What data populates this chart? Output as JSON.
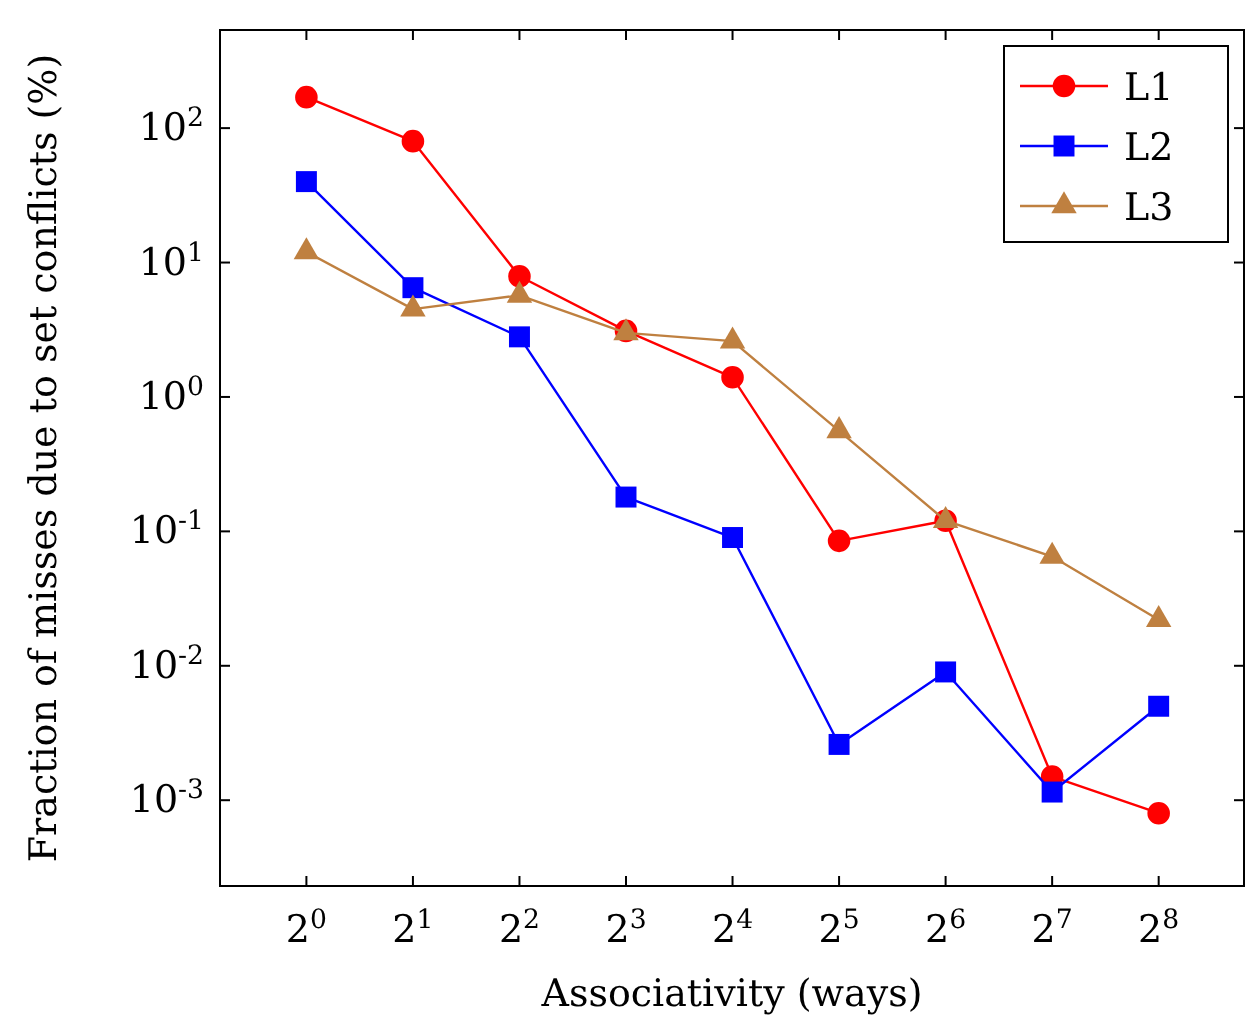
{
  "chart_data": {
    "type": "line",
    "xlabel": "Associativity (ways)",
    "ylabel": "Fraction of misses due to set conflicts (%)",
    "log": "xy",
    "x": [
      1,
      2,
      4,
      8,
      16,
      32,
      64,
      128,
      256
    ],
    "xlim": [
      0.57,
      446
    ],
    "ylim": [
      0.00023,
      537
    ],
    "xticks": [
      {
        "value": 1,
        "label": "2$^{0}$"
      },
      {
        "value": 2,
        "label": "2$^{1}$"
      },
      {
        "value": 4,
        "label": "2$^{2}$"
      },
      {
        "value": 8,
        "label": "2$^{3}$"
      },
      {
        "value": 16,
        "label": "2$^{4}$"
      },
      {
        "value": 32,
        "label": "2$^{5}$"
      },
      {
        "value": 64,
        "label": "2$^{6}$"
      },
      {
        "value": 128,
        "label": "2$^{7}$"
      },
      {
        "value": 256,
        "label": "2$^{8}$"
      }
    ],
    "yticks": [
      {
        "value": 0.001,
        "label": "10$^{-3}$"
      },
      {
        "value": 0.01,
        "label": "10$^{-2}$"
      },
      {
        "value": 0.1,
        "label": "10$^{-1}$"
      },
      {
        "value": 1,
        "label": "10$^{0}$"
      },
      {
        "value": 10,
        "label": "10$^{1}$"
      },
      {
        "value": 100,
        "label": "10$^{2}$"
      }
    ],
    "legend": "top right",
    "grid": false,
    "series": [
      {
        "name": "L1",
        "color": "#ff0000",
        "marker": "circle",
        "values": [
          170,
          80,
          7.9,
          3.1,
          1.4,
          0.085,
          0.12,
          0.0015,
          0.0008
        ]
      },
      {
        "name": "L2",
        "color": "#0000ff",
        "marker": "square",
        "values": [
          40,
          6.5,
          2.8,
          0.18,
          0.09,
          0.0026,
          0.009,
          0.00115,
          0.005
        ]
      },
      {
        "name": "L3",
        "color": "#bf8040",
        "marker": "triangle",
        "values": [
          12,
          4.5,
          5.7,
          3.0,
          2.6,
          0.56,
          0.12,
          0.065,
          0.022
        ]
      }
    ]
  }
}
